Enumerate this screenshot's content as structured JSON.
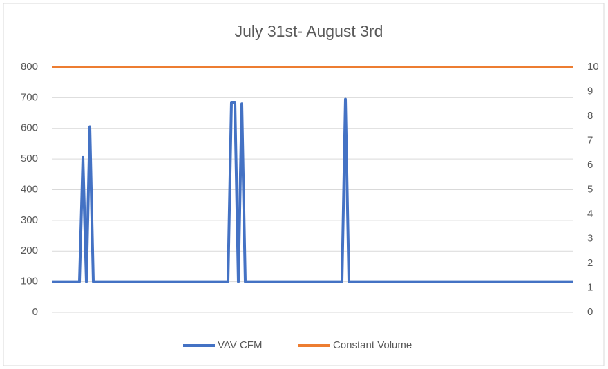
{
  "chart_data": {
    "type": "line",
    "title": "July 31st- August 3rd",
    "series": [
      {
        "name": "VAV CFM",
        "color": "#4472c4",
        "values": [
          100,
          100,
          100,
          100,
          100,
          100,
          100,
          100,
          100,
          505,
          100,
          605,
          100,
          100,
          100,
          100,
          100,
          100,
          100,
          100,
          100,
          100,
          100,
          100,
          100,
          100,
          100,
          100,
          100,
          100,
          100,
          100,
          100,
          100,
          100,
          100,
          100,
          100,
          100,
          100,
          100,
          100,
          100,
          100,
          100,
          100,
          100,
          100,
          100,
          100,
          100,
          100,
          685,
          685,
          100,
          680,
          100,
          100,
          100,
          100,
          100,
          100,
          100,
          100,
          100,
          100,
          100,
          100,
          100,
          100,
          100,
          100,
          100,
          100,
          100,
          100,
          100,
          100,
          100,
          100,
          100,
          100,
          100,
          100,
          100,
          695,
          100,
          100,
          100,
          100,
          100,
          100,
          100,
          100,
          100,
          100,
          100,
          100,
          100,
          100,
          100,
          100,
          100,
          100,
          100,
          100,
          100,
          100,
          100,
          100,
          100,
          100,
          100,
          100,
          100,
          100,
          100,
          100,
          100,
          100,
          100,
          100,
          100,
          100,
          100,
          100,
          100,
          100,
          100,
          100,
          100,
          100,
          100,
          100,
          100,
          100,
          100,
          100,
          100,
          100,
          100,
          100,
          100,
          100,
          100,
          100,
          100,
          100,
          100,
          100,
          100,
          100
        ]
      },
      {
        "name": "Constant Volume",
        "color": "#ed7d31",
        "axis": "y2",
        "values": [
          10,
          10,
          10,
          10,
          10,
          10,
          10,
          10,
          10,
          10,
          10,
          10,
          10,
          10,
          10,
          10,
          10,
          10,
          10,
          10,
          10,
          10,
          10,
          10,
          10,
          10,
          10,
          10,
          10,
          10,
          10,
          10,
          10,
          10,
          10,
          10,
          10,
          10,
          10,
          10,
          10,
          10,
          10,
          10,
          10,
          10,
          10,
          10,
          10,
          10,
          10,
          10,
          10,
          10,
          10,
          10,
          10,
          10,
          10,
          10,
          10,
          10,
          10,
          10,
          10,
          10,
          10,
          10,
          10,
          10,
          10,
          10,
          10,
          10,
          10,
          10,
          10,
          10,
          10,
          10,
          10,
          10,
          10,
          10,
          10,
          10,
          10,
          10,
          10,
          10,
          10,
          10,
          10,
          10,
          10,
          10,
          10,
          10,
          10,
          10,
          10,
          10,
          10,
          10,
          10,
          10,
          10,
          10,
          10,
          10,
          10,
          10,
          10,
          10,
          10,
          10,
          10,
          10,
          10,
          10,
          10,
          10,
          10,
          10,
          10,
          10,
          10,
          10,
          10,
          10,
          10,
          10,
          10,
          10,
          10,
          10,
          10,
          10,
          10,
          10,
          10,
          10,
          10,
          10,
          10,
          10,
          10,
          10,
          10,
          10,
          10,
          10
        ]
      }
    ],
    "ylim": [
      0,
      800
    ],
    "yticks": [
      0,
      100,
      200,
      300,
      400,
      500,
      600,
      700,
      800
    ],
    "y2lim": [
      0,
      10
    ],
    "y2ticks": [
      0,
      1,
      2,
      3,
      4,
      5,
      6,
      7,
      8,
      9,
      10
    ],
    "grid": true,
    "legend": "bottom"
  }
}
